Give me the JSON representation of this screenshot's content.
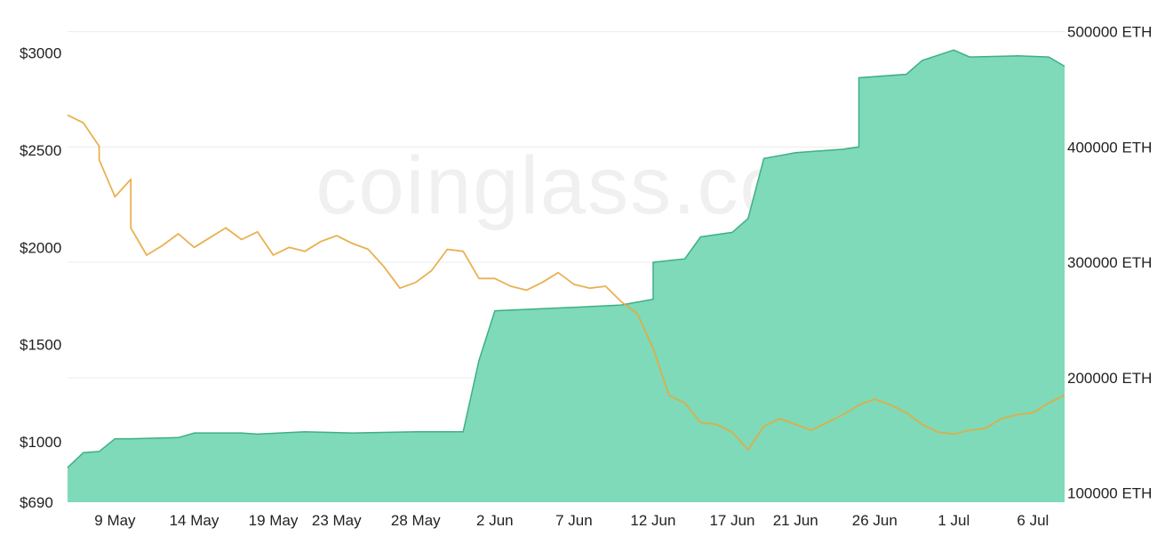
{
  "chart_data": {
    "type": "area",
    "watermark": "coinglass.com",
    "grid": true,
    "colors": {
      "price_line": "#E7A93D",
      "area_fill": "#7EDAB9",
      "area_stroke": "#3FAF86",
      "grid": "#ececec"
    },
    "x_ticks": [
      "9 May",
      "14 May",
      "19 May",
      "23 May",
      "28 May",
      "2 Jun",
      "7 Jun",
      "12 Jun",
      "17 Jun",
      "21 Jun",
      "26 Jun",
      "1 Jul",
      "6 Jul"
    ],
    "x_range": [
      "6 May",
      "8 Jul"
    ],
    "left_axis": {
      "ticks": [
        "$690",
        "$1000",
        "$1500",
        "$2000",
        "$2500",
        "$3000"
      ],
      "tick_values": [
        690,
        1000,
        1500,
        2000,
        2500,
        3000
      ],
      "ylim": [
        690,
        3180
      ]
    },
    "right_axis": {
      "ticks": [
        "100000 ETH",
        "200000 ETH",
        "300000 ETH",
        "400000 ETH",
        "500000 ETH"
      ],
      "tick_values": [
        100000,
        200000,
        300000,
        400000,
        500000
      ],
      "ylim": [
        92000,
        512000
      ]
    },
    "series": [
      {
        "axis": "right",
        "kind": "area",
        "points": [
          [
            "6 May",
            122000
          ],
          [
            "7 May",
            135000
          ],
          [
            "8 May",
            136000
          ],
          [
            "9 May",
            147000
          ],
          [
            "10 May",
            147000
          ],
          [
            "13 May",
            148000
          ],
          [
            "14 May",
            152000
          ],
          [
            "17 May",
            152000
          ],
          [
            "18 May",
            151000
          ],
          [
            "21 May",
            153000
          ],
          [
            "24 May",
            152000
          ],
          [
            "28 May",
            153000
          ],
          [
            "31 May",
            153000
          ],
          [
            "1 Jun",
            215000
          ],
          [
            "2 Jun",
            258000
          ],
          [
            "7 Jun",
            261000
          ],
          [
            "10 Jun",
            263000
          ],
          [
            "12 Jun",
            268000
          ],
          [
            "12 Jun",
            300000
          ],
          [
            "14 Jun",
            303000
          ],
          [
            "15 Jun",
            322000
          ],
          [
            "17 Jun",
            326000
          ],
          [
            "18 Jun",
            338000
          ],
          [
            "19 Jun",
            390000
          ],
          [
            "21 Jun",
            395000
          ],
          [
            "24 Jun",
            398000
          ],
          [
            "25 Jun",
            400000
          ],
          [
            "25 Jun",
            460000
          ],
          [
            "28 Jun",
            463000
          ],
          [
            "29 Jun",
            475000
          ],
          [
            "1 Jul",
            484000
          ],
          [
            "2 Jul",
            478000
          ],
          [
            "5 Jul",
            479000
          ],
          [
            "7 Jul",
            478000
          ],
          [
            "8 Jul",
            470000
          ]
        ]
      },
      {
        "axis": "left",
        "kind": "line",
        "points": [
          [
            "6 May",
            2680
          ],
          [
            "7 May",
            2640
          ],
          [
            "8 May",
            2520
          ],
          [
            "8 May",
            2450
          ],
          [
            "9 May",
            2260
          ],
          [
            "10 May",
            2350
          ],
          [
            "10 May",
            2100
          ],
          [
            "11 May",
            1960
          ],
          [
            "12 May",
            2010
          ],
          [
            "13 May",
            2070
          ],
          [
            "14 May",
            2000
          ],
          [
            "15 May",
            2050
          ],
          [
            "16 May",
            2100
          ],
          [
            "17 May",
            2040
          ],
          [
            "18 May",
            2080
          ],
          [
            "19 May",
            1960
          ],
          [
            "20 May",
            2000
          ],
          [
            "21 May",
            1980
          ],
          [
            "22 May",
            2030
          ],
          [
            "23 May",
            2060
          ],
          [
            "24 May",
            2020
          ],
          [
            "25 May",
            1990
          ],
          [
            "26 May",
            1900
          ],
          [
            "27 May",
            1790
          ],
          [
            "28 May",
            1820
          ],
          [
            "29 May",
            1880
          ],
          [
            "30 May",
            1990
          ],
          [
            "31 May",
            1980
          ],
          [
            "1 Jun",
            1840
          ],
          [
            "2 Jun",
            1840
          ],
          [
            "3 Jun",
            1800
          ],
          [
            "4 Jun",
            1780
          ],
          [
            "5 Jun",
            1820
          ],
          [
            "6 Jun",
            1870
          ],
          [
            "7 Jun",
            1810
          ],
          [
            "8 Jun",
            1790
          ],
          [
            "9 Jun",
            1800
          ],
          [
            "10 Jun",
            1720
          ],
          [
            "11 Jun",
            1660
          ],
          [
            "12 Jun",
            1480
          ],
          [
            "13 Jun",
            1240
          ],
          [
            "14 Jun",
            1200
          ],
          [
            "15 Jun",
            1100
          ],
          [
            "16 Jun",
            1090
          ],
          [
            "17 Jun",
            1050
          ],
          [
            "18 Jun",
            960
          ],
          [
            "19 Jun",
            1080
          ],
          [
            "20 Jun",
            1120
          ],
          [
            "21 Jun",
            1090
          ],
          [
            "22 Jun",
            1060
          ],
          [
            "23 Jun",
            1100
          ],
          [
            "24 Jun",
            1140
          ],
          [
            "25 Jun",
            1190
          ],
          [
            "26 Jun",
            1220
          ],
          [
            "27 Jun",
            1190
          ],
          [
            "28 Jun",
            1150
          ],
          [
            "29 Jun",
            1090
          ],
          [
            "30 Jun",
            1050
          ],
          [
            "1 Jul",
            1040
          ],
          [
            "2 Jul",
            1060
          ],
          [
            "3 Jul",
            1070
          ],
          [
            "4 Jul",
            1120
          ],
          [
            "5 Jul",
            1140
          ],
          [
            "6 Jul",
            1150
          ],
          [
            "7 Jul",
            1200
          ],
          [
            "8 Jul",
            1240
          ]
        ]
      }
    ]
  }
}
